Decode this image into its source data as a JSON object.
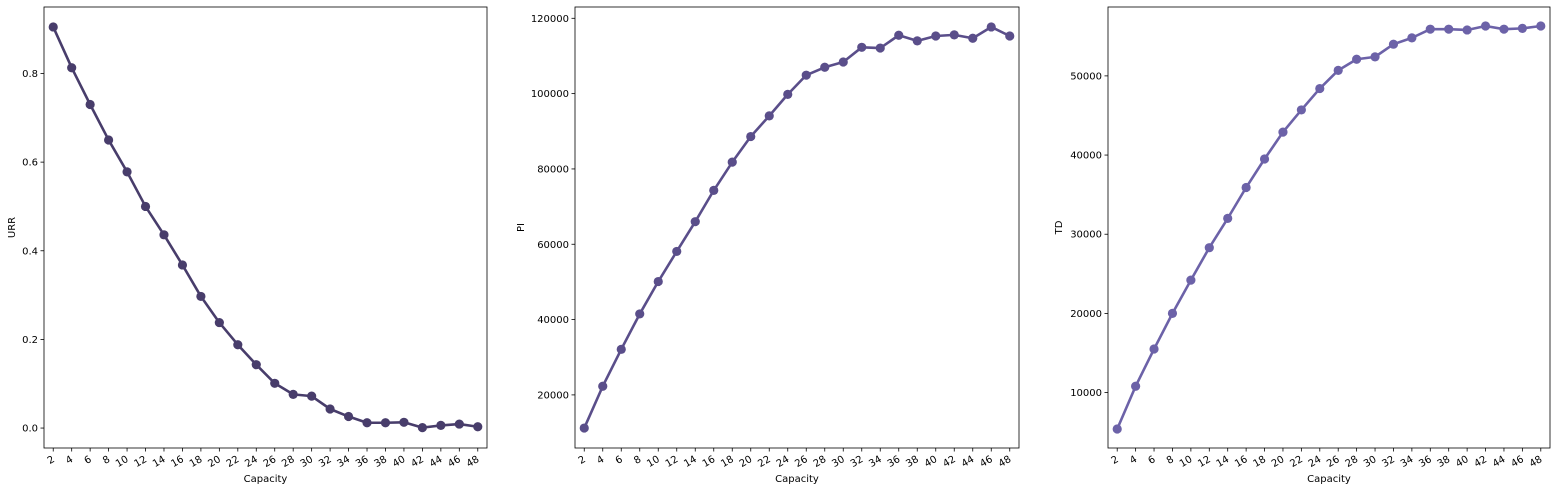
{
  "chart_data": [
    {
      "type": "line",
      "xlabel": "Capacity",
      "ylabel": "URR",
      "color": "#483d6b",
      "categories": [
        "2",
        "4",
        "6",
        "8",
        "10",
        "12",
        "14",
        "16",
        "18",
        "20",
        "22",
        "24",
        "26",
        "28",
        "30",
        "32",
        "34",
        "36",
        "38",
        "40",
        "42",
        "44",
        "46",
        "48"
      ],
      "values": [
        0.905,
        0.813,
        0.73,
        0.65,
        0.578,
        0.5,
        0.436,
        0.368,
        0.297,
        0.238,
        0.188,
        0.143,
        0.101,
        0.076,
        0.072,
        0.043,
        0.026,
        0.012,
        0.012,
        0.013,
        0.001,
        0.006,
        0.009,
        0.003
      ],
      "yticks": [
        0.0,
        0.2,
        0.4,
        0.6,
        0.8
      ],
      "ytick_labels": [
        "0.0",
        "0.2",
        "0.4",
        "0.6",
        "0.8"
      ],
      "ylim": [
        -0.045,
        0.95
      ],
      "grid": false
    },
    {
      "type": "line",
      "xlabel": "Capacity",
      "ylabel": "PI",
      "color": "#5a4e8a",
      "categories": [
        "2",
        "4",
        "6",
        "8",
        "10",
        "12",
        "14",
        "16",
        "18",
        "20",
        "22",
        "24",
        "26",
        "28",
        "30",
        "32",
        "34",
        "36",
        "38",
        "40",
        "42",
        "44",
        "46",
        "48"
      ],
      "values": [
        11200,
        22300,
        32100,
        41500,
        50100,
        58100,
        66000,
        74300,
        81800,
        88600,
        94100,
        99800,
        104900,
        107000,
        108400,
        112300,
        112100,
        115500,
        114000,
        115300,
        115600,
        114700,
        117700,
        115300
      ],
      "yticks": [
        20000,
        40000,
        60000,
        80000,
        100000,
        120000
      ],
      "ytick_labels": [
        "20000",
        "40000",
        "60000",
        "80000",
        "100000",
        "120000"
      ],
      "ylim": [
        5900,
        123000
      ],
      "grid": false
    },
    {
      "type": "line",
      "xlabel": "Capacity",
      "ylabel": "TD",
      "color": "#6c62a8",
      "categories": [
        "2",
        "4",
        "6",
        "8",
        "10",
        "12",
        "14",
        "16",
        "18",
        "20",
        "22",
        "24",
        "26",
        "28",
        "30",
        "32",
        "34",
        "36",
        "38",
        "40",
        "42",
        "44",
        "46",
        "48"
      ],
      "values": [
        5400,
        10800,
        15500,
        20000,
        24200,
        28300,
        32000,
        35900,
        39500,
        42900,
        45700,
        48400,
        50700,
        52100,
        52400,
        54000,
        54800,
        55900,
        55900,
        55800,
        56300,
        55900,
        56000,
        56300
      ],
      "yticks": [
        10000,
        20000,
        30000,
        40000,
        50000
      ],
      "ytick_labels": [
        "10000",
        "20000",
        "30000",
        "40000",
        "50000"
      ],
      "ylim": [
        3000,
        58700
      ],
      "grid": false
    }
  ]
}
